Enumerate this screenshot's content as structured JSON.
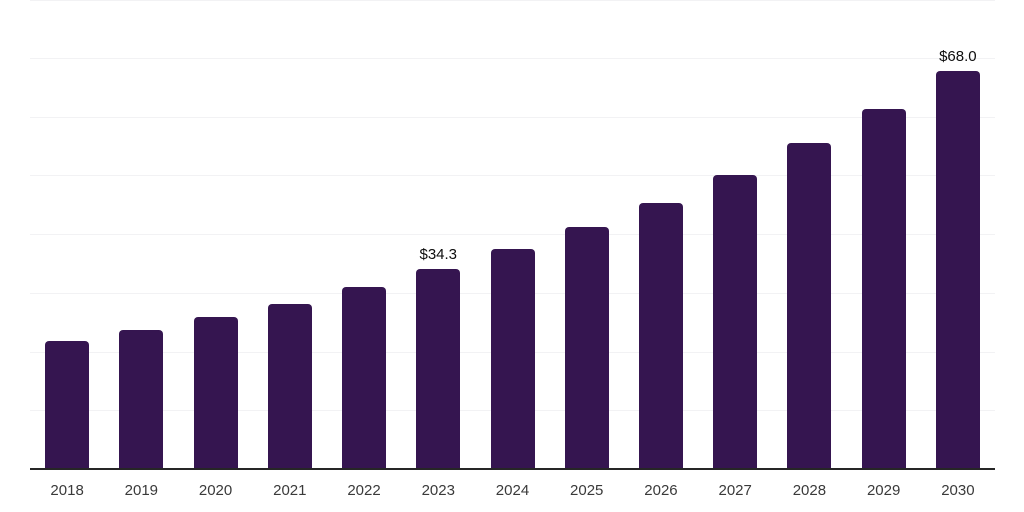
{
  "chart_data": {
    "type": "bar",
    "title": "",
    "xlabel": "",
    "ylabel": "",
    "categories": [
      "2018",
      "2019",
      "2020",
      "2021",
      "2022",
      "2023",
      "2024",
      "2025",
      "2026",
      "2027",
      "2028",
      "2029",
      "2030"
    ],
    "values": [
      22.0,
      23.8,
      26.0,
      28.3,
      31.1,
      34.3,
      37.6,
      41.4,
      45.5,
      50.3,
      55.6,
      61.5,
      68.0
    ],
    "value_prefix": "$",
    "bar_labels": {
      "2023": "$34.3",
      "2030": "$68.0"
    },
    "ylim": [
      0,
      80
    ],
    "gridline_step": 10,
    "grid": "horizontal",
    "y_tick_labels_visible": false,
    "colors": {
      "bar": "#351550",
      "gridline": "#f2f2f4",
      "axis_line": "#262626",
      "tick_label": "#3a3a3a",
      "bar_label": "#0d0d0d",
      "background": "#ffffff"
    }
  }
}
